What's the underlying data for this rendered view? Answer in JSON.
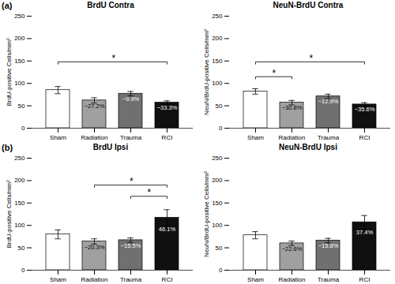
{
  "chart_data": [
    {
      "type": "bar",
      "title": "BrdU Contra",
      "panel_label": "(a)",
      "ylabel": "BrdU-positive Cells/mm²",
      "categories": [
        "Sham",
        "Radiation",
        "Trauma",
        "RCI"
      ],
      "values": [
        85,
        62,
        77,
        57
      ],
      "errors": [
        8,
        6,
        5,
        4
      ],
      "colors": [
        "#ffffff",
        "#a0a0a0",
        "#707070",
        "#101010"
      ],
      "annotations": [
        null,
        "−27.2%",
        "−9.9%",
        "−33.3%"
      ],
      "brackets": [
        {
          "x1": "Sham",
          "x2": "RCI",
          "y": 148,
          "label": "*"
        }
      ],
      "ylim": [
        0,
        250
      ],
      "yticks": [
        0,
        50,
        100,
        150,
        200,
        250
      ],
      "grid": false
    },
    {
      "type": "bar",
      "title": "NeuN-BrdU Contra",
      "ylabel": "NeuN/BrdU-positive Cells/mm²",
      "categories": [
        "Sham",
        "Radiation",
        "Trauma",
        "RCI"
      ],
      "values": [
        82,
        57,
        71,
        53
      ],
      "errors": [
        6,
        5,
        5,
        4
      ],
      "colors": [
        "#ffffff",
        "#a0a0a0",
        "#707070",
        "#101010"
      ],
      "annotations": [
        null,
        "−30.8%",
        "−12.9%",
        "−35.6%"
      ],
      "brackets": [
        {
          "x1": "Sham",
          "x2": "Radiation",
          "y": 115,
          "label": "*"
        },
        {
          "x1": "Sham",
          "x2": "RCI",
          "y": 148,
          "label": "*"
        }
      ],
      "ylim": [
        0,
        250
      ],
      "yticks": [
        0,
        50,
        100,
        150,
        200,
        250
      ],
      "grid": false
    },
    {
      "type": "bar",
      "title": "BrdU Ipsi",
      "panel_label": "(b)",
      "ylabel": "BrdU-positive Cells/mm²",
      "categories": [
        "Sham",
        "Radiation",
        "Trauma",
        "RCI"
      ],
      "values": [
        80,
        64,
        67,
        117
      ],
      "errors": [
        10,
        6,
        5,
        18
      ],
      "colors": [
        "#ffffff",
        "#a0a0a0",
        "#707070",
        "#101010"
      ],
      "annotations": [
        null,
        "−20.3%",
        "−15.5%",
        "46.1%"
      ],
      "brackets": [
        {
          "x1": "Radiation",
          "x2": "RCI",
          "y": 190,
          "label": "*"
        },
        {
          "x1": "Trauma",
          "x2": "RCI",
          "y": 165,
          "label": "*"
        }
      ],
      "ylim": [
        0,
        250
      ],
      "yticks": [
        0,
        50,
        100,
        150,
        200,
        250
      ],
      "grid": false
    },
    {
      "type": "bar",
      "title": "NeuN-BrdU Ipsi",
      "ylabel": "NeuN/BrdU-positive Cells/mm²",
      "categories": [
        "Sham",
        "Radiation",
        "Trauma",
        "RCI"
      ],
      "values": [
        78,
        60,
        66,
        107
      ],
      "errors": [
        8,
        5,
        5,
        15
      ],
      "colors": [
        "#ffffff",
        "#a0a0a0",
        "#707070",
        "#101010"
      ],
      "annotations": [
        null,
        "−22.6%",
        "−15.8%",
        "37.4%"
      ],
      "brackets": [],
      "ylim": [
        0,
        250
      ],
      "yticks": [
        0,
        50,
        100,
        150,
        200,
        250
      ],
      "grid": false
    }
  ]
}
